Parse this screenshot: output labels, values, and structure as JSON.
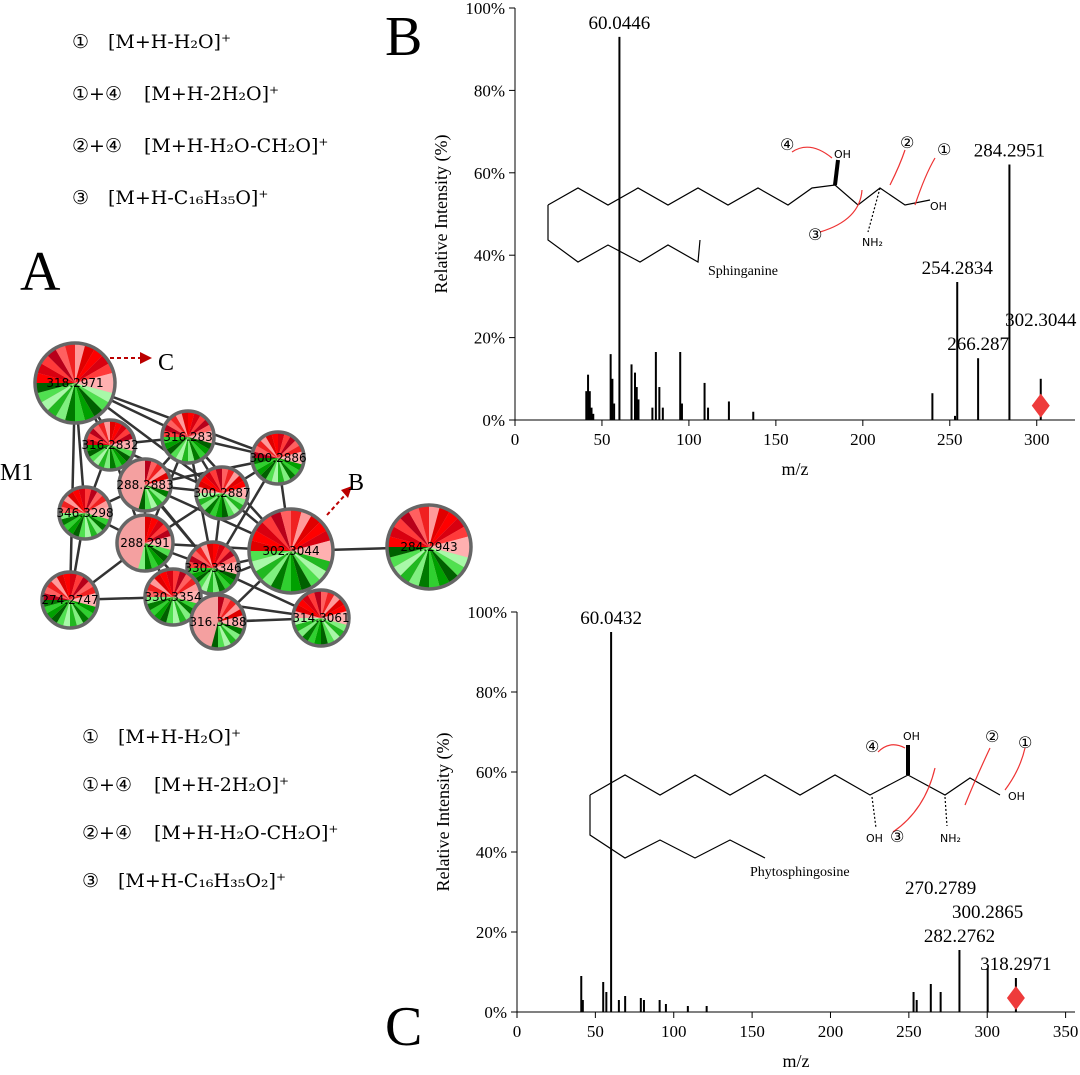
{
  "chart_data": [
    {
      "type": "spectrum",
      "ylabel": "Relative Intensity (%)",
      "xlabel": "m/z",
      "xlim": [
        0,
        322
      ],
      "ylim": [
        0,
        100
      ],
      "xticks": [
        0,
        50,
        100,
        150,
        200,
        250,
        300
      ],
      "yticks": [
        {
          "value": 0,
          "label": "0%"
        },
        {
          "value": 20,
          "label": "20%"
        },
        {
          "value": 40,
          "label": "40%"
        },
        {
          "value": 60,
          "label": "60%"
        },
        {
          "value": 80,
          "label": "80%"
        },
        {
          "value": 100,
          "label": "100%"
        }
      ],
      "color": "#000000",
      "x": [
        41,
        42,
        43,
        44,
        45,
        55,
        56,
        57,
        67,
        69,
        70,
        71,
        79,
        81,
        83,
        85,
        95,
        96,
        109,
        111,
        123,
        137,
        240,
        253
      ],
      "values": [
        7,
        11,
        7,
        3,
        1.5,
        16,
        10,
        4,
        13.5,
        11.5,
        8,
        5,
        3,
        16.5,
        8,
        3,
        16.5,
        4,
        9,
        3,
        4.5,
        2,
        6.5,
        1
      ],
      "peaks": {
        "x": [
          60.0446,
          284.2951,
          254.2834,
          266.287,
          302.3044
        ],
        "values": [
          93,
          62,
          33.5,
          15,
          10
        ]
      },
      "precursor": {
        "x": 302.3044,
        "y": 3.5,
        "color": "#ee3b3b"
      }
    },
    {
      "type": "spectrum",
      "ylabel": "Relative Intensity (%)",
      "xlabel": "m/z",
      "xlim": [
        0,
        356
      ],
      "ylim": [
        0,
        100
      ],
      "xticks": [
        0,
        50,
        100,
        150,
        200,
        250,
        300,
        350
      ],
      "yticks": [
        {
          "value": 0,
          "label": "0%"
        },
        {
          "value": 20,
          "label": "20%"
        },
        {
          "value": 40,
          "label": "40%"
        },
        {
          "value": 60,
          "label": "60%"
        },
        {
          "value": 80,
          "label": "80%"
        },
        {
          "value": 100,
          "label": "100%"
        }
      ],
      "color": "#000000",
      "x": [
        41,
        42,
        55,
        57,
        65,
        69,
        79,
        81,
        91,
        95,
        109,
        121,
        253,
        255,
        264
      ],
      "values": [
        9,
        3,
        7.5,
        5,
        3,
        4,
        3.5,
        3,
        3,
        2,
        1.5,
        1.5,
        5,
        3,
        7
      ],
      "peaks": {
        "x": [
          60.0432,
          282.2762,
          318.2971,
          300.2865,
          270.2789
        ],
        "values": [
          95,
          15.5,
          8.5,
          11,
          5
        ]
      },
      "precursor": {
        "x": 318.2971,
        "y": 3.5,
        "color": "#ee3b3b"
      }
    }
  ],
  "panel_letters": [
    "A",
    "B",
    "C"
  ],
  "network": {
    "cluster": "M1",
    "arrow_labels": [
      "C",
      "B"
    ],
    "nodes": [
      "318.2971",
      "316.2832",
      "316.283",
      "300.2886",
      "346.3298",
      "288.2883",
      "300.2887",
      "302.3044",
      "284.2943",
      "288.291",
      "330.3346",
      "274.2747",
      "330.3354",
      "316.3188",
      "314.3061"
    ]
  },
  "fragments_top": [
    {
      "marker": "①",
      "formula": "[M+H-H₂O]⁺"
    },
    {
      "marker": "①+④",
      "formula": "[M+H-2H₂O]⁺"
    },
    {
      "marker": "②+④",
      "formula": "[M+H-H₂O-CH₂O]⁺"
    },
    {
      "marker": "③",
      "formula": "[M+H-C₁₆H₃₅O]⁺"
    }
  ],
  "fragments_bottom": [
    {
      "marker": "①",
      "formula": "[M+H-H₂O]⁺"
    },
    {
      "marker": "①+④",
      "formula": "[M+H-2H₂O]⁺"
    },
    {
      "marker": "②+④",
      "formula": "[M+H-H₂O-CH₂O]⁺"
    },
    {
      "marker": "③",
      "formula": "[M+H-C₁₆H₃₅O₂]⁺"
    }
  ],
  "structure_b": {
    "name": "Sphinganine",
    "labels": [
      "④",
      "②",
      "①",
      "OH",
      "OH",
      "③",
      "NH₂"
    ]
  },
  "structure_c": {
    "name": "Phytosphingosine",
    "labels": [
      "④",
      "②",
      "①",
      "OH",
      "OH",
      "OH",
      "③",
      "NH₂"
    ]
  }
}
